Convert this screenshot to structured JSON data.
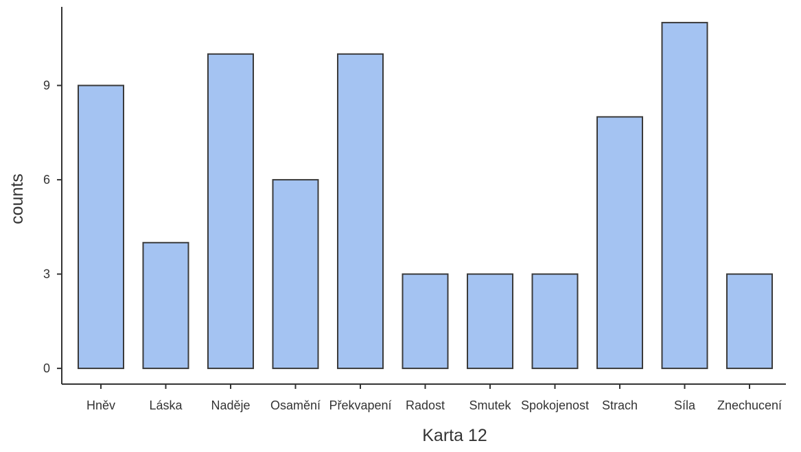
{
  "chart_data": {
    "type": "bar",
    "categories": [
      "Hněv",
      "Láska",
      "Naděje",
      "Osamění",
      "Překvapení",
      "Radost",
      "Smutek",
      "Spokojenost",
      "Strach",
      "Síla",
      "Znechucení"
    ],
    "values": [
      9,
      4,
      10,
      6,
      10,
      3,
      3,
      3,
      8,
      11,
      3
    ],
    "xlabel": "Karta 12",
    "ylabel": "counts",
    "y_ticks": [
      0,
      3,
      6,
      9
    ],
    "ylim": [
      -0.5,
      11.5
    ],
    "grid": false,
    "colors": {
      "bar_fill": "#a4c3f2",
      "bar_stroke": "#3a3a3a",
      "axis": "#333333"
    }
  }
}
